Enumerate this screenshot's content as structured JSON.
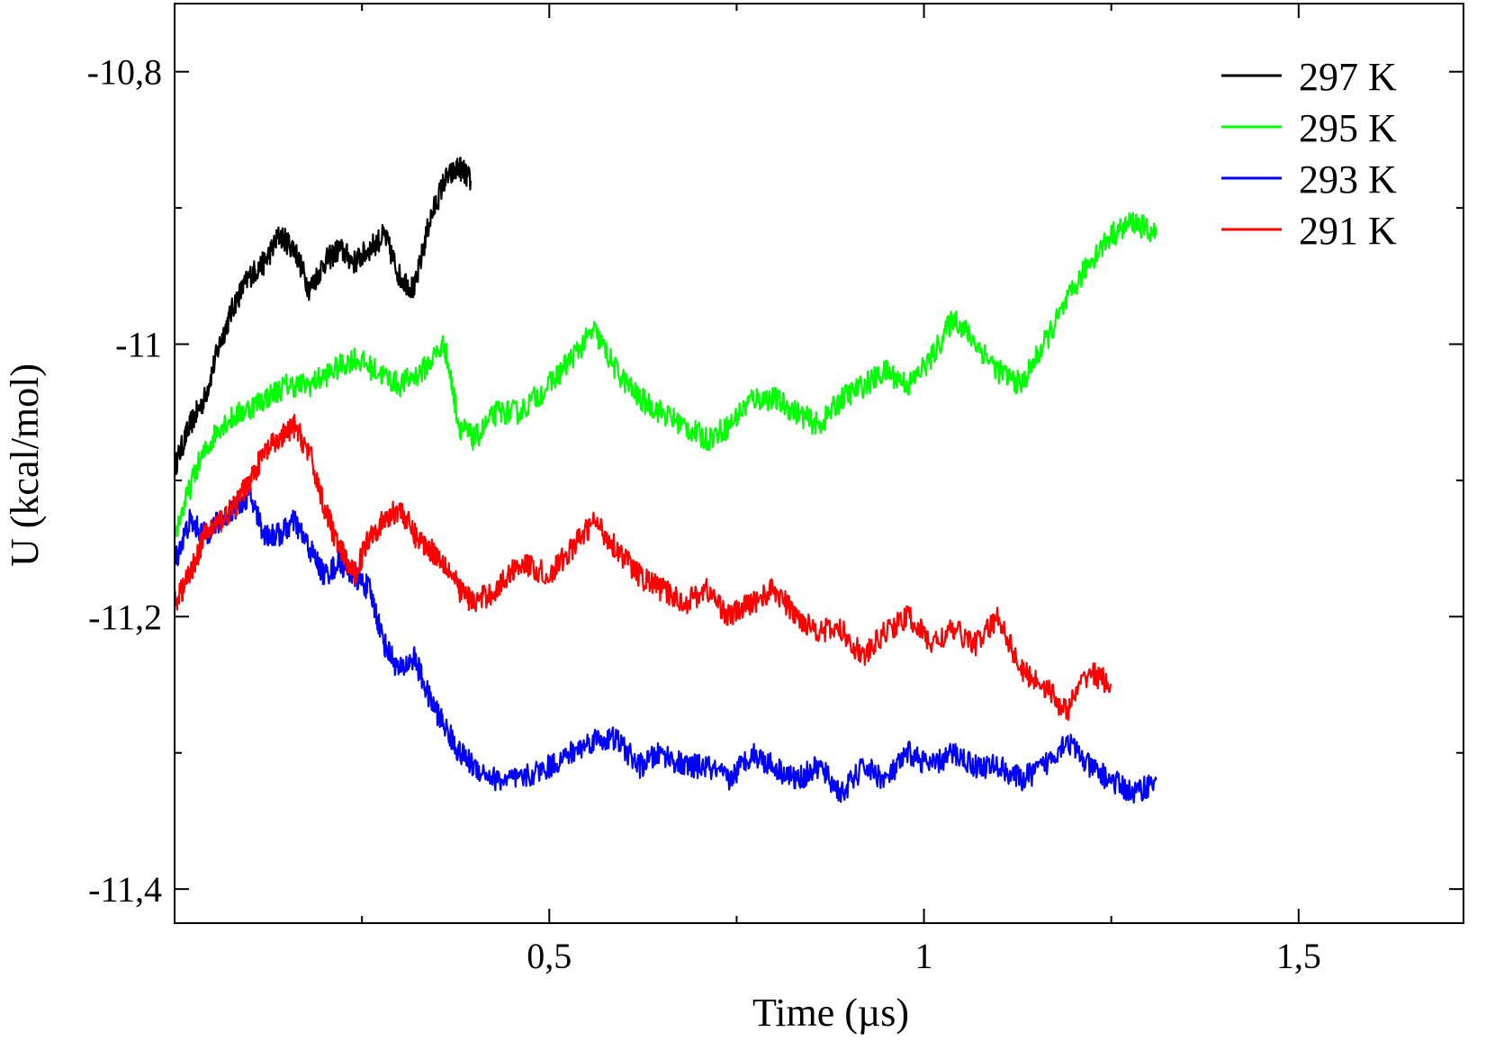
{
  "chart_data": {
    "type": "line",
    "xlabel": "Time (µs)",
    "ylabel": "U (kcal/mol)",
    "xlim": [
      0,
      1.72
    ],
    "ylim": [
      -11.425,
      -10.75
    ],
    "x_ticks": [
      {
        "value": 0.5,
        "label": "0,5"
      },
      {
        "value": 1.0,
        "label": "1"
      },
      {
        "value": 1.5,
        "label": "1,5"
      }
    ],
    "x_minor_ticks": [
      0.25,
      0.75,
      1.25
    ],
    "y_ticks": [
      {
        "value": -10.8,
        "label": "-10,8"
      },
      {
        "value": -11.0,
        "label": "-11"
      },
      {
        "value": -11.2,
        "label": "-11,2"
      },
      {
        "value": -11.4,
        "label": "-11,4"
      }
    ],
    "y_minor_ticks": [
      -10.9,
      -11.1,
      -11.3
    ],
    "grid": false,
    "legend_position": "top-right",
    "series": [
      {
        "name": "297 K",
        "color": "#000000",
        "x": [
          0.0,
          0.02,
          0.04,
          0.06,
          0.08,
          0.1,
          0.12,
          0.14,
          0.16,
          0.18,
          0.2,
          0.22,
          0.24,
          0.26,
          0.28,
          0.3,
          0.32,
          0.34,
          0.36,
          0.38,
          0.395
        ],
        "y": [
          -11.09,
          -11.06,
          -11.04,
          -11.0,
          -10.97,
          -10.95,
          -10.94,
          -10.92,
          -10.93,
          -10.96,
          -10.94,
          -10.93,
          -10.94,
          -10.93,
          -10.92,
          -10.95,
          -10.96,
          -10.91,
          -10.88,
          -10.87,
          -10.88
        ]
      },
      {
        "name": "295 K",
        "color": "#00ff00",
        "x": [
          0.0,
          0.03,
          0.06,
          0.09,
          0.12,
          0.15,
          0.18,
          0.21,
          0.24,
          0.27,
          0.3,
          0.33,
          0.36,
          0.38,
          0.4,
          0.43,
          0.46,
          0.5,
          0.53,
          0.56,
          0.59,
          0.62,
          0.65,
          0.68,
          0.71,
          0.74,
          0.77,
          0.8,
          0.83,
          0.86,
          0.89,
          0.92,
          0.95,
          0.98,
          1.01,
          1.04,
          1.07,
          1.1,
          1.13,
          1.16,
          1.19,
          1.22,
          1.25,
          1.28,
          1.31
        ],
        "y": [
          -11.14,
          -11.09,
          -11.06,
          -11.05,
          -11.04,
          -11.03,
          -11.03,
          -11.02,
          -11.01,
          -11.02,
          -11.03,
          -11.02,
          -11.0,
          -11.06,
          -11.07,
          -11.05,
          -11.05,
          -11.03,
          -11.01,
          -10.99,
          -11.02,
          -11.04,
          -11.05,
          -11.06,
          -11.07,
          -11.06,
          -11.04,
          -11.04,
          -11.05,
          -11.06,
          -11.04,
          -11.03,
          -11.02,
          -11.03,
          -11.01,
          -10.98,
          -11.0,
          -11.02,
          -11.03,
          -11.0,
          -10.97,
          -10.94,
          -10.92,
          -10.91,
          -10.92
        ]
      },
      {
        "name": "293 K",
        "color": "#0000ff",
        "x": [
          0.0,
          0.02,
          0.04,
          0.06,
          0.08,
          0.1,
          0.12,
          0.14,
          0.16,
          0.18,
          0.2,
          0.22,
          0.24,
          0.26,
          0.28,
          0.3,
          0.32,
          0.34,
          0.36,
          0.38,
          0.4,
          0.43,
          0.46,
          0.5,
          0.53,
          0.56,
          0.59,
          0.62,
          0.65,
          0.68,
          0.71,
          0.74,
          0.77,
          0.8,
          0.83,
          0.86,
          0.89,
          0.92,
          0.95,
          0.98,
          1.01,
          1.04,
          1.07,
          1.1,
          1.13,
          1.16,
          1.19,
          1.22,
          1.25,
          1.28,
          1.31
        ],
        "y": [
          -11.16,
          -11.13,
          -11.14,
          -11.13,
          -11.12,
          -11.11,
          -11.14,
          -11.14,
          -11.13,
          -11.15,
          -11.17,
          -11.16,
          -11.17,
          -11.18,
          -11.22,
          -11.24,
          -11.23,
          -11.26,
          -11.28,
          -11.3,
          -11.31,
          -11.32,
          -11.32,
          -11.31,
          -11.3,
          -11.29,
          -11.29,
          -11.31,
          -11.3,
          -11.31,
          -11.31,
          -11.32,
          -11.3,
          -11.31,
          -11.32,
          -11.31,
          -11.33,
          -11.31,
          -11.32,
          -11.3,
          -11.31,
          -11.3,
          -11.31,
          -11.31,
          -11.32,
          -11.31,
          -11.29,
          -11.31,
          -11.32,
          -11.33,
          -11.32
        ]
      },
      {
        "name": "291 K",
        "color": "#ff0000",
        "x": [
          0.0,
          0.02,
          0.04,
          0.06,
          0.08,
          0.1,
          0.12,
          0.14,
          0.16,
          0.18,
          0.2,
          0.22,
          0.24,
          0.26,
          0.28,
          0.3,
          0.32,
          0.34,
          0.36,
          0.38,
          0.4,
          0.43,
          0.46,
          0.5,
          0.53,
          0.56,
          0.59,
          0.62,
          0.65,
          0.68,
          0.71,
          0.74,
          0.77,
          0.8,
          0.83,
          0.86,
          0.89,
          0.92,
          0.95,
          0.98,
          1.01,
          1.04,
          1.07,
          1.1,
          1.13,
          1.16,
          1.19,
          1.22,
          1.25
        ],
        "y": [
          -11.19,
          -11.17,
          -11.14,
          -11.13,
          -11.12,
          -11.1,
          -11.08,
          -11.07,
          -11.06,
          -11.08,
          -11.12,
          -11.15,
          -11.17,
          -11.14,
          -11.13,
          -11.12,
          -11.14,
          -11.15,
          -11.16,
          -11.18,
          -11.19,
          -11.18,
          -11.16,
          -11.17,
          -11.15,
          -11.13,
          -11.15,
          -11.17,
          -11.18,
          -11.19,
          -11.18,
          -11.2,
          -11.19,
          -11.18,
          -11.2,
          -11.21,
          -11.21,
          -11.23,
          -11.21,
          -11.2,
          -11.22,
          -11.21,
          -11.22,
          -11.2,
          -11.24,
          -11.25,
          -11.27,
          -11.24,
          -11.25
        ]
      }
    ]
  }
}
